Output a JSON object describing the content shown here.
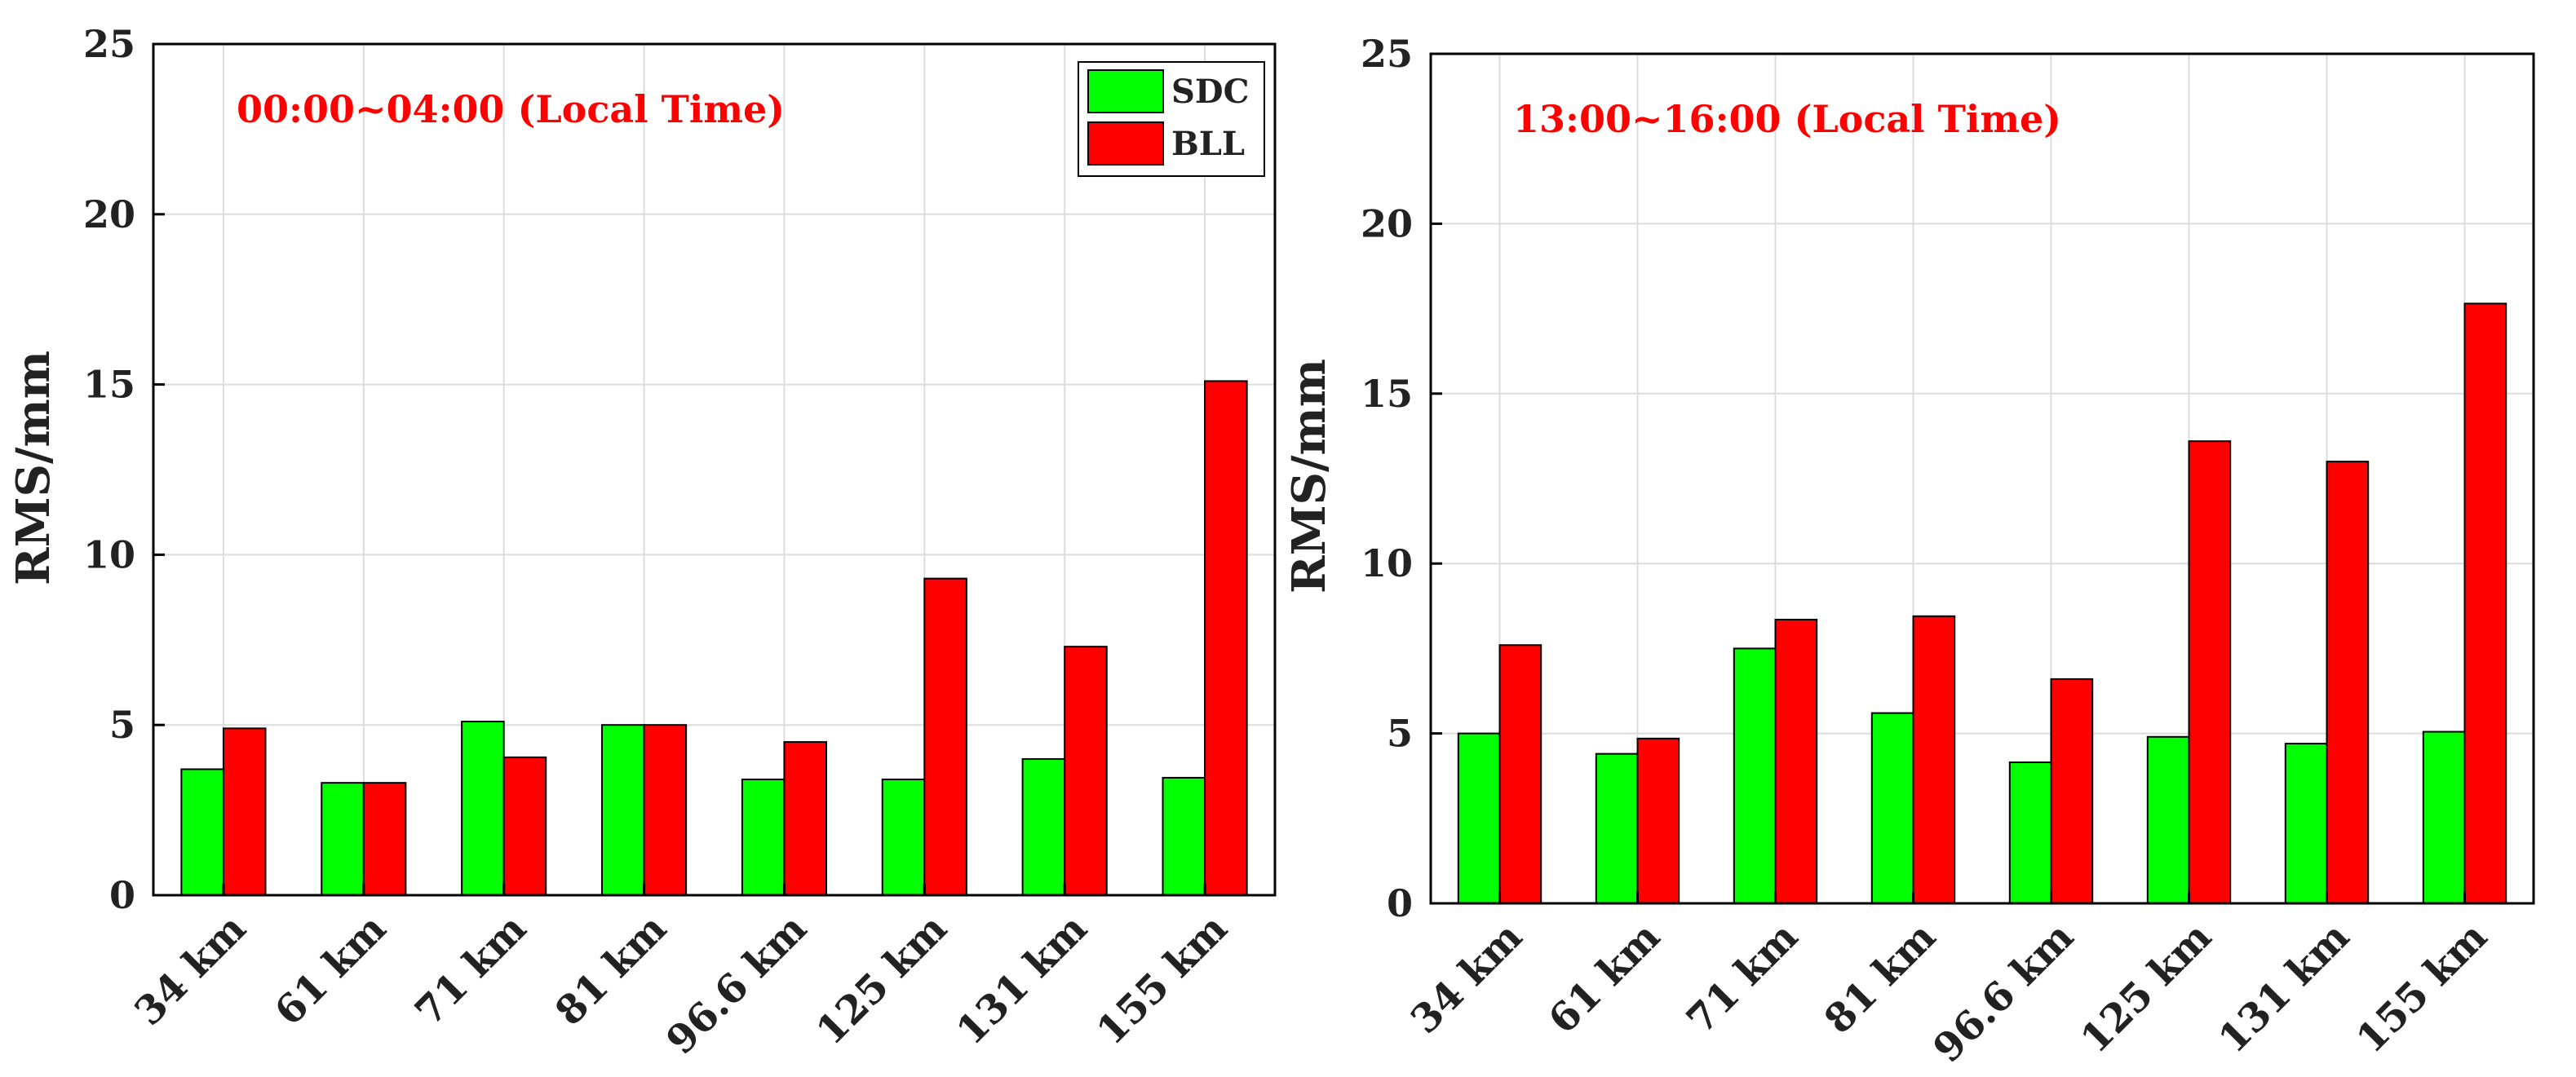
{
  "chart_data": [
    {
      "type": "bar",
      "title": "",
      "annotation": "00:00~04:00 (Local Time)",
      "xlabel": "",
      "ylabel": "RMS/mm",
      "ylim": [
        0,
        25
      ],
      "yticks": [
        "0",
        "5",
        "10",
        "15",
        "20",
        "25"
      ],
      "grid": true,
      "legend_position": "top-right",
      "categories": [
        "34 km",
        "61 km",
        "71 km",
        "81 km",
        "96.6 km",
        "125 km",
        "131 km",
        "155 km"
      ],
      "series": [
        {
          "name": "SDC",
          "color": "#00ff00",
          "values": [
            3.7,
            3.3,
            5.1,
            5.0,
            3.4,
            3.4,
            4.0,
            3.45
          ]
        },
        {
          "name": "BLL",
          "color": "#ff0000",
          "values": [
            4.9,
            3.3,
            4.05,
            5.0,
            4.5,
            9.3,
            7.3,
            15.1
          ]
        }
      ]
    },
    {
      "type": "bar",
      "title": "",
      "annotation": "13:00~16:00 (Local Time)",
      "xlabel": "",
      "ylabel": "RMS/mm",
      "ylim": [
        0,
        25
      ],
      "yticks": [
        "0",
        "5",
        "10",
        "15",
        "20",
        "25"
      ],
      "grid": true,
      "legend_position": "none",
      "categories": [
        "34 km",
        "61 km",
        "71 km",
        "81 km",
        "96.6 km",
        "125 km",
        "131 km",
        "155 km"
      ],
      "series": [
        {
          "name": "SDC",
          "color": "#00ff00",
          "values": [
            5.0,
            4.4,
            7.5,
            5.6,
            4.15,
            4.9,
            4.7,
            5.05
          ]
        },
        {
          "name": "BLL",
          "color": "#ff0000",
          "values": [
            7.6,
            4.85,
            8.35,
            8.45,
            6.6,
            13.6,
            13.0,
            17.65
          ]
        }
      ]
    }
  ]
}
